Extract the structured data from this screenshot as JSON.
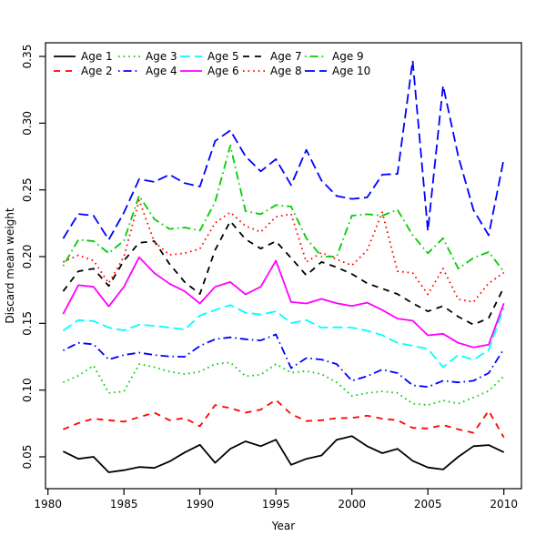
{
  "chart_data": {
    "type": "line",
    "title": "",
    "xlabel": "Year",
    "ylabel": "Discard mean weight",
    "x_ticks": [
      1980,
      1985,
      1990,
      1995,
      2000,
      2005,
      2010
    ],
    "x_tick_labels": [
      "1980",
      "1985",
      "1990",
      "1995",
      "2000",
      "2005",
      "2010"
    ],
    "y_ticks": [
      0.05,
      0.1,
      0.15,
      0.2,
      0.25,
      0.3,
      0.35
    ],
    "y_tick_labels": [
      "0.05",
      "0.10",
      "0.15",
      "0.20",
      "0.25",
      "0.30",
      "0.35"
    ],
    "xlim": [
      1979.84,
      2011.16
    ],
    "ylim": [
      0.0261,
      0.3602
    ],
    "grid": false,
    "legend_position": "top-inside, horizontal, 5 columns x 2 rows, no box",
    "x": [
      1981,
      1982,
      1983,
      1984,
      1985,
      1986,
      1987,
      1988,
      1989,
      1990,
      1991,
      1992,
      1993,
      1994,
      1995,
      1996,
      1997,
      1998,
      1999,
      2000,
      2001,
      2002,
      2003,
      2004,
      2005,
      2006,
      2007,
      2008,
      2009,
      2010
    ],
    "series": [
      {
        "name": "Age 1",
        "color": "#000000",
        "linestyle": "solid",
        "values": [
          0.054,
          0.0485,
          0.05,
          0.0384,
          0.04,
          0.0424,
          0.0417,
          0.0465,
          0.0533,
          0.059,
          0.0455,
          0.056,
          0.0616,
          0.058,
          0.0628,
          0.044,
          0.0485,
          0.051,
          0.0628,
          0.0655,
          0.058,
          0.0527,
          0.056,
          0.047,
          0.042,
          0.0405,
          0.05,
          0.058,
          0.0588,
          0.0535
        ]
      },
      {
        "name": "Age 2",
        "color": "#FF0000",
        "linestyle": "dashed",
        "values": [
          0.0706,
          0.0752,
          0.0786,
          0.0774,
          0.0763,
          0.0797,
          0.0831,
          0.0774,
          0.079,
          0.0729,
          0.0888,
          0.0865,
          0.0831,
          0.0854,
          0.0927,
          0.082,
          0.0768,
          0.0774,
          0.079,
          0.0791,
          0.0808,
          0.0786,
          0.0774,
          0.0717,
          0.0713,
          0.0738,
          0.0706,
          0.068,
          0.0845,
          0.0645
        ]
      },
      {
        "name": "Age 3",
        "color": "#00CD00",
        "linestyle": "dotted",
        "values": [
          0.1058,
          0.1108,
          0.1183,
          0.0978,
          0.099,
          0.1195,
          0.1172,
          0.1138,
          0.112,
          0.1138,
          0.1195,
          0.1207,
          0.1104,
          0.1115,
          0.1195,
          0.1131,
          0.1142,
          0.112,
          0.1058,
          0.0956,
          0.0978,
          0.099,
          0.0978,
          0.0899,
          0.0888,
          0.0922,
          0.0899,
          0.0944,
          0.0994,
          0.1104
        ]
      },
      {
        "name": "Age 4",
        "color": "#0000FF",
        "linestyle": "dotdash",
        "values": [
          0.1297,
          0.1354,
          0.1343,
          0.1229,
          0.1263,
          0.1281,
          0.1263,
          0.1252,
          0.125,
          0.1331,
          0.1381,
          0.1395,
          0.1381,
          0.1372,
          0.1417,
          0.1165,
          0.124,
          0.1229,
          0.1195,
          0.107,
          0.1104,
          0.1154,
          0.1127,
          0.1036,
          0.1024,
          0.107,
          0.1058,
          0.107,
          0.1127,
          0.1309
        ]
      },
      {
        "name": "Age 5",
        "color": "#00FFFF",
        "linestyle": "longdash",
        "values": [
          0.1445,
          0.1524,
          0.1517,
          0.1468,
          0.1447,
          0.149,
          0.1481,
          0.1468,
          0.1454,
          0.1558,
          0.16,
          0.1637,
          0.158,
          0.1566,
          0.159,
          0.1502,
          0.1524,
          0.1468,
          0.147,
          0.1468,
          0.1445,
          0.1411,
          0.1354,
          0.1331,
          0.1309,
          0.1172,
          0.1263,
          0.1227,
          0.13,
          0.1617
        ]
      },
      {
        "name": "Age 6",
        "color": "#FF00FF",
        "linestyle": "solid",
        "values": [
          0.157,
          0.1786,
          0.1774,
          0.1627,
          0.1774,
          0.1995,
          0.1877,
          0.1797,
          0.174,
          0.1649,
          0.1774,
          0.181,
          0.1717,
          0.1774,
          0.197,
          0.166,
          0.1649,
          0.1683,
          0.165,
          0.163,
          0.1655,
          0.16,
          0.1536,
          0.152,
          0.141,
          0.1422,
          0.1354,
          0.132,
          0.134,
          0.165
        ]
      },
      {
        "name": "Age 7",
        "color": "#000000",
        "linestyle": "dashed",
        "values": [
          0.174,
          0.189,
          0.191,
          0.178,
          0.197,
          0.2104,
          0.2116,
          0.1945,
          0.1809,
          0.172,
          0.205,
          0.2265,
          0.213,
          0.206,
          0.2115,
          0.199,
          0.186,
          0.196,
          0.192,
          0.187,
          0.18,
          0.176,
          0.172,
          0.165,
          0.159,
          0.163,
          0.155,
          0.149,
          0.154,
          0.177
        ]
      },
      {
        "name": "Age 8",
        "color": "#FF0000",
        "linestyle": "dotted",
        "values": [
          0.196,
          0.201,
          0.197,
          0.18,
          0.2,
          0.2423,
          0.211,
          0.2014,
          0.2025,
          0.2059,
          0.2252,
          0.2332,
          0.223,
          0.2184,
          0.2298,
          0.232,
          0.196,
          0.203,
          0.198,
          0.1934,
          0.2047,
          0.2332,
          0.189,
          0.1877,
          0.1717,
          0.1911,
          0.168,
          0.166,
          0.18,
          0.188
        ]
      },
      {
        "name": "Age 9",
        "color": "#00CD00",
        "linestyle": "dotdash",
        "values": [
          0.193,
          0.2127,
          0.2116,
          0.2025,
          0.212,
          0.2457,
          0.228,
          0.2207,
          0.2218,
          0.2195,
          0.241,
          0.2832,
          0.2341,
          0.2318,
          0.2386,
          0.2375,
          0.2138,
          0.2,
          0.2,
          0.2307,
          0.2318,
          0.2307,
          0.2352,
          0.216,
          0.2025,
          0.2138,
          0.191,
          0.199,
          0.2035,
          0.1888
        ]
      },
      {
        "name": "Age 10",
        "color": "#0000FF",
        "linestyle": "longdash",
        "values": [
          0.2136,
          0.232,
          0.2307,
          0.2127,
          0.233,
          0.258,
          0.256,
          0.2614,
          0.255,
          0.2525,
          0.2866,
          0.2946,
          0.2752,
          0.2639,
          0.273,
          0.2536,
          0.28,
          0.257,
          0.2454,
          0.2432,
          0.2443,
          0.2614,
          0.262,
          0.3468,
          0.2193,
          0.3281,
          0.2752,
          0.235,
          0.216,
          0.2734
        ]
      }
    ]
  }
}
